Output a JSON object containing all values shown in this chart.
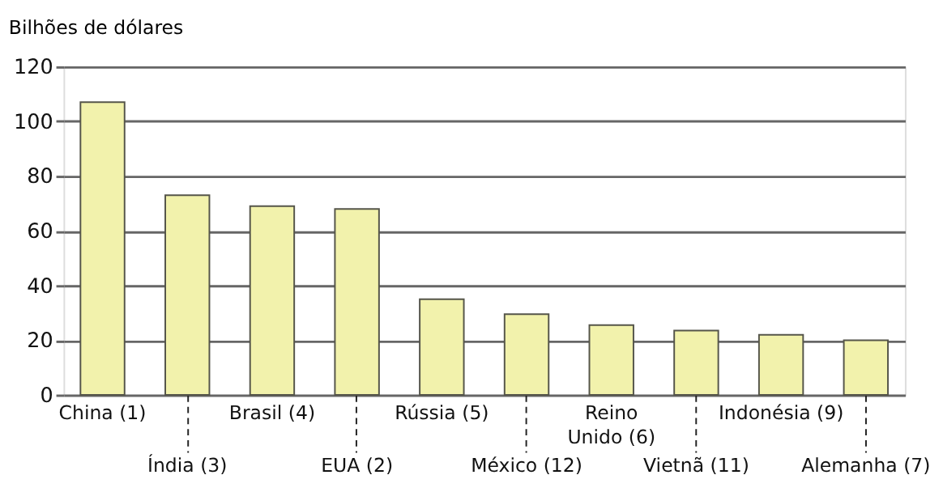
{
  "chart_data": {
    "type": "bar",
    "ylabel": "Bilhões de dólares",
    "categories": [
      "China (1)",
      "Índia (3)",
      "Brasil (4)",
      "EUA (2)",
      "Rússia (5)",
      "México (12)",
      "Reino Unido (6)",
      "Vietnã (11)",
      "Indonésia (9)",
      "Alemanha (7)"
    ],
    "values": [
      107,
      73,
      69,
      68,
      35,
      29.5,
      25.5,
      23.5,
      22,
      20
    ],
    "color": "#f2f2ac",
    "ylim": [
      0,
      120
    ],
    "yticks": [
      0,
      20,
      40,
      60,
      80,
      100,
      120
    ],
    "grid": "y"
  }
}
